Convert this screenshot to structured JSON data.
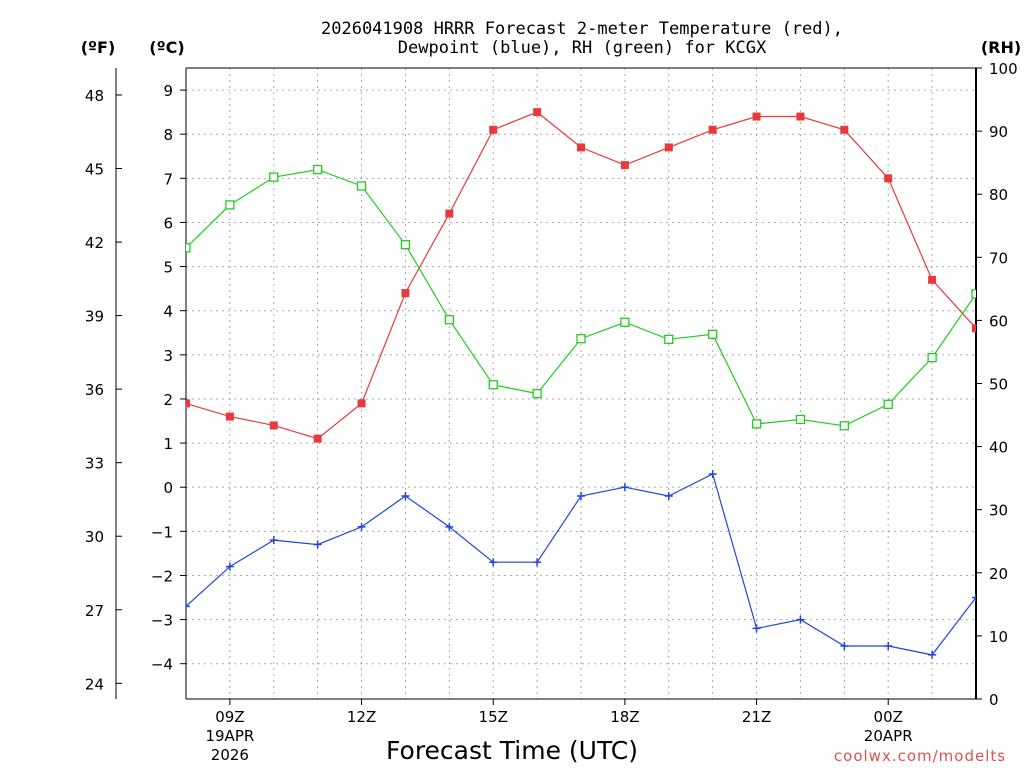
{
  "title_line1": "2026041908 HRRR Forecast 2-meter Temperature (red),",
  "title_line2": "Dewpoint (blue), RH (green) for KCGX",
  "credit": "coolwx.com/modelts",
  "chart_data": {
    "type": "line",
    "title": "2026041908 HRRR Forecast 2-meter Temperature (red), Dewpoint (blue), RH (green) for KCGX",
    "xlabel": "Forecast Time (UTC)",
    "x_hours": [
      8,
      9,
      10,
      11,
      12,
      13,
      14,
      15,
      16,
      17,
      18,
      19,
      20,
      21,
      22,
      23,
      24,
      25,
      26
    ],
    "xlim": [
      8,
      26
    ],
    "x_ticks": [
      {
        "hour": 9,
        "label": "09Z",
        "date": "19APR",
        "year": "2026"
      },
      {
        "hour": 12,
        "label": "12Z"
      },
      {
        "hour": 15,
        "label": "15Z"
      },
      {
        "hour": 18,
        "label": "18Z"
      },
      {
        "hour": 21,
        "label": "21Z"
      },
      {
        "hour": 24,
        "label": "00Z",
        "date": "20APR"
      }
    ],
    "celsius_axis": {
      "label": "(ºC)",
      "ylim": [
        -4.8,
        9.5
      ],
      "ticks": [
        -4,
        -3,
        -2,
        -1,
        0,
        1,
        2,
        3,
        4,
        5,
        6,
        7,
        8,
        9
      ],
      "tick_labels": [
        "−4",
        "−3",
        "−2",
        "−1",
        "0",
        "1",
        "2",
        "3",
        "4",
        "5",
        "6",
        "7",
        "8",
        "9"
      ]
    },
    "fahrenheit_axis": {
      "label": "(ºF)",
      "ticks": [
        24,
        27,
        30,
        33,
        36,
        39,
        42,
        45,
        48
      ]
    },
    "rh_axis": {
      "label": "(RH)",
      "ylim": [
        0,
        100
      ],
      "ticks": [
        0,
        10,
        20,
        30,
        40,
        50,
        60,
        70,
        80,
        90,
        100
      ]
    },
    "series": [
      {
        "name": "2-meter Temperature",
        "axis": "celsius",
        "color": "#e8393c",
        "marker": "filled-square",
        "values": [
          1.9,
          1.6,
          1.4,
          1.1,
          1.9,
          4.4,
          6.2,
          8.1,
          8.5,
          7.7,
          7.3,
          7.7,
          8.1,
          8.4,
          8.4,
          8.1,
          7.0,
          4.7,
          3.6
        ]
      },
      {
        "name": "Dewpoint",
        "axis": "celsius",
        "color": "#2244dd",
        "marker": "plus",
        "values": [
          -2.7,
          -1.8,
          -1.2,
          -1.3,
          -0.9,
          -0.2,
          -0.9,
          -1.7,
          -1.7,
          -0.2,
          0.0,
          -0.2,
          0.3,
          -3.2,
          -3.0,
          -3.6,
          -3.6,
          -3.8,
          -2.5
        ]
      },
      {
        "name": "Relative Humidity",
        "axis": "rh",
        "color": "#22cc22",
        "marker": "open-square",
        "values": [
          71.5,
          78.3,
          82.7,
          83.9,
          81.3,
          72.0,
          60.1,
          49.8,
          48.4,
          57.1,
          59.7,
          57.0,
          57.8,
          43.6,
          44.3,
          43.3,
          46.7,
          54.1,
          64.2
        ]
      }
    ]
  }
}
